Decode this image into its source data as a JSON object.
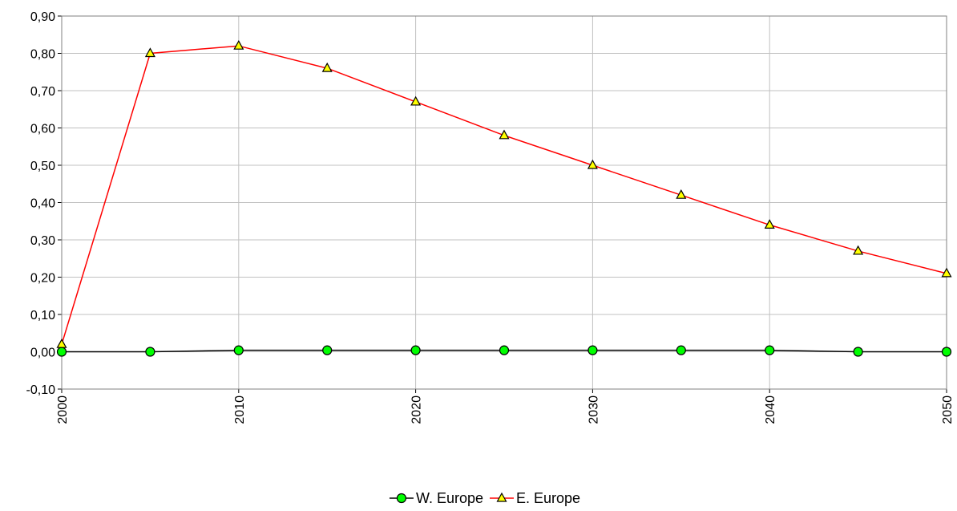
{
  "chart_data": {
    "type": "line",
    "x": [
      2000,
      2005,
      2010,
      2015,
      2020,
      2025,
      2030,
      2035,
      2040,
      2045,
      2050
    ],
    "xlim": [
      2000,
      2050
    ],
    "xticks": [
      2000,
      2010,
      2020,
      2030,
      2040,
      2050
    ],
    "ylim": [
      -0.1,
      0.9
    ],
    "yticks": [
      {
        "value": -0.1,
        "label": "-0,10"
      },
      {
        "value": 0,
        "label": "0,00"
      },
      {
        "value": 0.1,
        "label": "0,10"
      },
      {
        "value": 0.2,
        "label": "0,20"
      },
      {
        "value": 0.3,
        "label": "0,30"
      },
      {
        "value": 0.4,
        "label": "0,40"
      },
      {
        "value": 0.5,
        "label": "0,50"
      },
      {
        "value": 0.6,
        "label": "0,60"
      },
      {
        "value": 0.7,
        "label": "0,70"
      },
      {
        "value": 0.8,
        "label": "0,80"
      },
      {
        "value": 0.9,
        "label": "0,90"
      }
    ],
    "grid": true,
    "legend": "bottom",
    "series": [
      {
        "name": "W. Europe",
        "color": "#000000",
        "marker": "circle",
        "marker_color": "#00ff00",
        "values": [
          0,
          0,
          0.004,
          0.004,
          0.004,
          0.004,
          0.004,
          0.004,
          0.004,
          0,
          0
        ]
      },
      {
        "name": "E. Europe",
        "color": "#ff0000",
        "marker": "triangle",
        "marker_color": "#ffff00",
        "values": [
          0.02,
          0.8,
          0.82,
          0.76,
          0.67,
          0.58,
          0.5,
          0.42,
          0.34,
          0.27,
          0.21
        ]
      }
    ]
  }
}
